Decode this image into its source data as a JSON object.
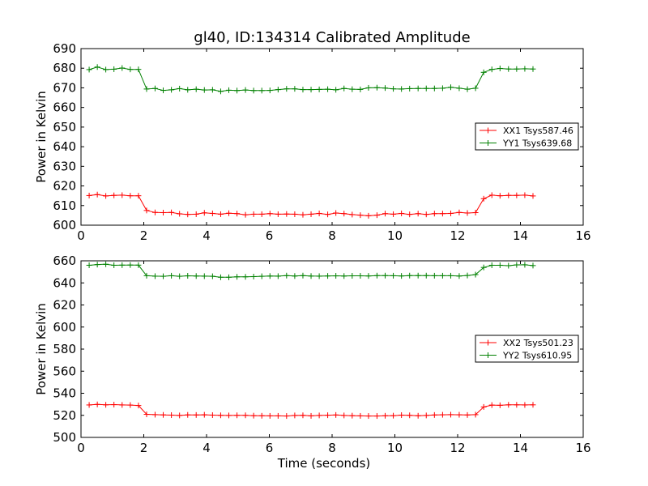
{
  "title": "gl40, ID:134314 Calibrated Amplitude",
  "colors": {
    "xx": "#ff0000",
    "yy": "#008000"
  },
  "chart_data": [
    {
      "type": "line",
      "title": "gl40, ID:134314 Calibrated Amplitude",
      "xlabel": "",
      "ylabel": "Power in Kelvin",
      "xlim": [
        0,
        16
      ],
      "ylim": [
        600,
        690
      ],
      "xticks": [
        "0",
        "2",
        "4",
        "6",
        "8",
        "10",
        "12",
        "14",
        "16"
      ],
      "yticks": [
        "600",
        "610",
        "620",
        "630",
        "640",
        "650",
        "660",
        "670",
        "680",
        "690"
      ],
      "grid": false,
      "legend_position": "right",
      "x": [
        0.26,
        0.52,
        0.79,
        1.05,
        1.31,
        1.57,
        1.83,
        2.09,
        2.36,
        2.62,
        2.88,
        3.14,
        3.4,
        3.67,
        3.93,
        4.19,
        4.45,
        4.71,
        4.97,
        5.24,
        5.5,
        5.76,
        6.02,
        6.28,
        6.55,
        6.81,
        7.07,
        7.33,
        7.59,
        7.86,
        8.12,
        8.38,
        8.64,
        8.9,
        9.16,
        9.43,
        9.69,
        9.95,
        10.21,
        10.47,
        10.74,
        11.0,
        11.26,
        11.52,
        11.78,
        12.05,
        12.31,
        12.57,
        12.83,
        13.09,
        13.35,
        13.62,
        13.88,
        14.14,
        14.4
      ],
      "series": [
        {
          "name": "XX1 Tsys587.46",
          "color": "#ff0000",
          "values": [
            615.1,
            615.6,
            614.9,
            615.2,
            615.3,
            615.0,
            615.0,
            607.5,
            606.5,
            606.4,
            606.5,
            605.8,
            605.5,
            605.6,
            606.3,
            606.0,
            605.6,
            606.1,
            605.9,
            605.3,
            605.6,
            605.6,
            605.9,
            605.6,
            605.7,
            605.6,
            605.3,
            605.6,
            606.0,
            605.5,
            606.2,
            605.9,
            605.4,
            605.1,
            604.8,
            605.1,
            605.9,
            605.6,
            606.0,
            605.5,
            605.9,
            605.5,
            605.9,
            605.9,
            606.0,
            606.5,
            606.2,
            606.4,
            613.5,
            615.3,
            615.0,
            615.2,
            615.2,
            615.3,
            614.9
          ]
        },
        {
          "name": "YY1 Tsys639.68",
          "color": "#008000",
          "values": [
            679.3,
            680.6,
            679.3,
            679.5,
            680.1,
            679.4,
            679.4,
            669.4,
            669.7,
            668.7,
            669.0,
            669.6,
            669.0,
            669.3,
            668.9,
            669.0,
            668.2,
            668.8,
            668.6,
            668.9,
            668.6,
            668.6,
            668.7,
            669.1,
            669.5,
            669.5,
            669.1,
            669.1,
            669.2,
            669.3,
            669.0,
            669.7,
            669.3,
            669.2,
            670.0,
            670.1,
            669.9,
            669.5,
            669.4,
            669.6,
            669.7,
            669.7,
            669.7,
            669.8,
            670.3,
            669.8,
            669.3,
            669.8,
            677.9,
            679.4,
            679.9,
            679.6,
            679.6,
            679.7,
            679.6
          ]
        }
      ]
    },
    {
      "type": "line",
      "title": "",
      "xlabel": "Time (seconds)",
      "ylabel": "Power in Kelvin",
      "xlim": [
        0,
        16
      ],
      "ylim": [
        500,
        660
      ],
      "xticks": [
        "0",
        "2",
        "4",
        "6",
        "8",
        "10",
        "12",
        "14",
        "16"
      ],
      "yticks": [
        "500",
        "520",
        "540",
        "560",
        "580",
        "600",
        "620",
        "640",
        "660"
      ],
      "grid": false,
      "legend_position": "right",
      "x": [
        0.26,
        0.52,
        0.79,
        1.05,
        1.31,
        1.57,
        1.83,
        2.09,
        2.36,
        2.62,
        2.88,
        3.14,
        3.4,
        3.67,
        3.93,
        4.19,
        4.45,
        4.71,
        4.97,
        5.24,
        5.5,
        5.76,
        6.02,
        6.28,
        6.55,
        6.81,
        7.07,
        7.33,
        7.59,
        7.86,
        8.12,
        8.38,
        8.64,
        8.9,
        9.16,
        9.43,
        9.69,
        9.95,
        10.21,
        10.47,
        10.74,
        11.0,
        11.26,
        11.52,
        11.78,
        12.05,
        12.31,
        12.57,
        12.83,
        13.09,
        13.35,
        13.62,
        13.88,
        14.14,
        14.4
      ],
      "series": [
        {
          "name": "XX2 Tsys501.23",
          "color": "#ff0000",
          "values": [
            529.4,
            529.9,
            529.5,
            529.7,
            529.4,
            529.3,
            528.9,
            520.9,
            520.6,
            520.4,
            520.2,
            519.9,
            520.4,
            520.3,
            520.5,
            520.2,
            520.0,
            519.9,
            520.0,
            520.0,
            519.7,
            519.6,
            519.5,
            519.5,
            519.4,
            519.9,
            520.0,
            519.5,
            519.9,
            520.1,
            520.3,
            519.9,
            519.7,
            519.5,
            519.4,
            519.4,
            519.6,
            519.7,
            520.2,
            520.0,
            519.6,
            519.9,
            520.3,
            520.5,
            520.6,
            520.5,
            520.3,
            520.6,
            527.6,
            529.3,
            529.1,
            529.5,
            529.5,
            529.4,
            529.5
          ]
        },
        {
          "name": "YY2 Tsys610.95",
          "color": "#008000",
          "values": [
            656.0,
            656.6,
            656.9,
            656.0,
            656.1,
            656.2,
            656.1,
            646.5,
            646.1,
            646.0,
            646.5,
            646.0,
            646.4,
            646.2,
            646.1,
            646.0,
            645.1,
            645.1,
            645.5,
            645.5,
            645.7,
            646.0,
            646.2,
            646.1,
            646.6,
            646.2,
            646.6,
            646.2,
            646.1,
            646.3,
            646.4,
            646.2,
            646.4,
            646.4,
            646.3,
            646.6,
            646.6,
            646.5,
            646.3,
            646.6,
            646.6,
            646.6,
            646.5,
            646.5,
            646.5,
            646.2,
            646.7,
            647.5,
            654.0,
            656.0,
            656.0,
            655.6,
            656.3,
            656.4,
            655.7
          ]
        }
      ]
    }
  ]
}
